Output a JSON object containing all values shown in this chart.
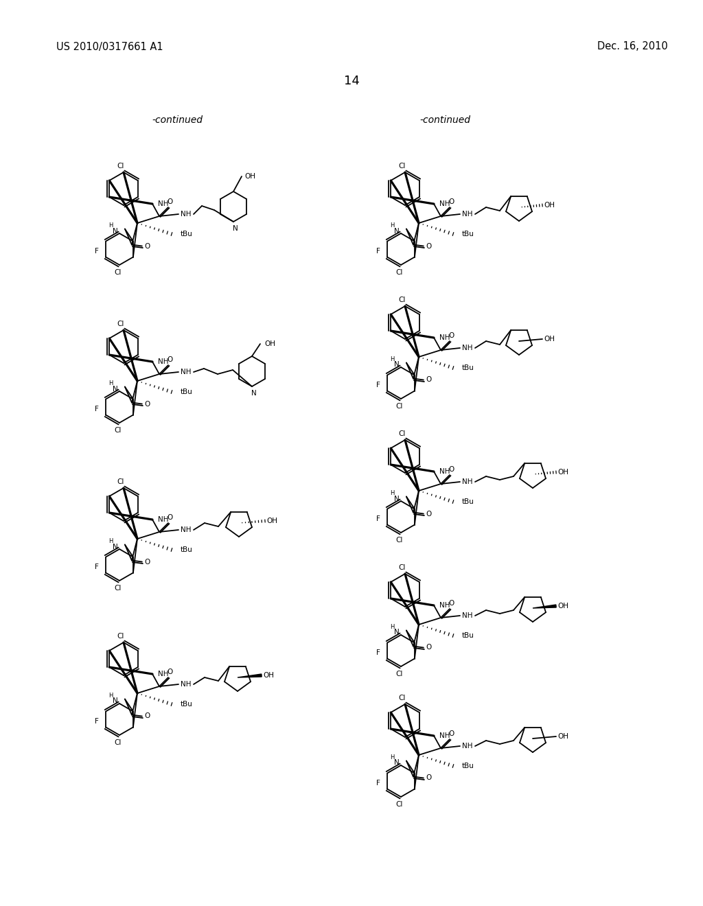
{
  "page_number": "14",
  "left_header": "US 2010/0317661 A1",
  "right_header": "Dec. 16, 2010",
  "continued_left": "-continued",
  "continued_right": "-continued",
  "background_color": "#ffffff",
  "text_color": "#000000"
}
